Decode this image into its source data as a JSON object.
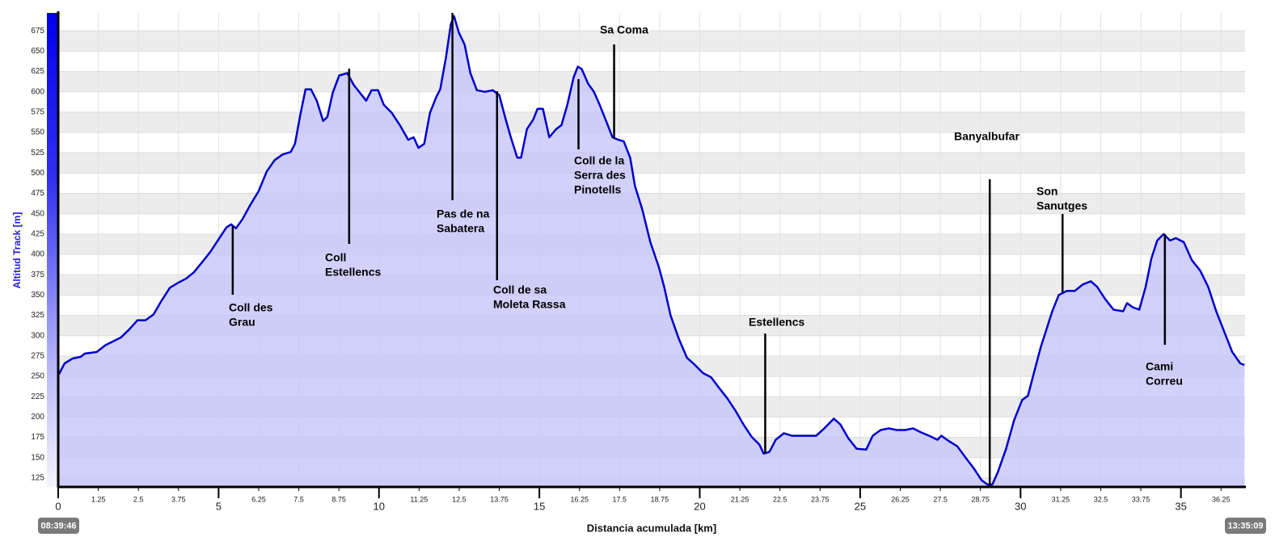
{
  "chart_data": {
    "type": "area",
    "xlabel": "Distancia acumulada [km]",
    "ylabel": "Altitud Track [m]",
    "start_time": "08:39:46",
    "end_time": "13:35:09",
    "color": "#0000cc",
    "fill": "#c4c4fa",
    "grid": true,
    "xlim": [
      0,
      37
    ],
    "ylim": [
      114,
      697
    ],
    "xticks": [
      0,
      1.25,
      2.5,
      3.75,
      5,
      6.25,
      7.5,
      8.75,
      10,
      11.25,
      12.5,
      13.75,
      15,
      16.25,
      17.5,
      18.75,
      20,
      21.25,
      22.5,
      23.75,
      25,
      26.25,
      27.5,
      28.75,
      30,
      31.25,
      32.5,
      33.75,
      35,
      36.25
    ],
    "yticks": [
      125,
      150,
      175,
      200,
      225,
      250,
      275,
      300,
      325,
      350,
      375,
      400,
      425,
      450,
      475,
      500,
      525,
      550,
      575,
      600,
      625,
      650,
      675
    ],
    "x": [
      0,
      0.2,
      0.45,
      0.7,
      0.83,
      1.2,
      1.46,
      1.71,
      1.96,
      2.22,
      2.47,
      2.72,
      2.97,
      3.22,
      3.48,
      3.73,
      3.98,
      4.23,
      4.48,
      4.74,
      4.99,
      5.24,
      5.39,
      5.54,
      5.74,
      5.99,
      6.25,
      6.5,
      6.75,
      7.0,
      7.25,
      7.38,
      7.56,
      7.71,
      7.88,
      8.06,
      8.26,
      8.39,
      8.56,
      8.76,
      9.01,
      9.22,
      9.4,
      9.6,
      9.77,
      9.97,
      10.15,
      10.4,
      10.65,
      10.91,
      11.08,
      11.23,
      11.41,
      11.59,
      11.79,
      11.91,
      12.09,
      12.24,
      12.34,
      12.49,
      12.67,
      12.85,
      13.05,
      13.3,
      13.55,
      13.75,
      13.93,
      14.11,
      14.31,
      14.43,
      14.61,
      14.81,
      14.94,
      15.11,
      15.31,
      15.52,
      15.69,
      15.87,
      16.07,
      16.2,
      16.32,
      16.52,
      16.7,
      16.88,
      17.08,
      17.28,
      17.46,
      17.63,
      17.83,
      17.98,
      18.21,
      18.46,
      18.72,
      18.89,
      19.09,
      19.35,
      19.6,
      19.85,
      20.1,
      20.35,
      20.6,
      20.86,
      21.11,
      21.36,
      21.61,
      21.86,
      21.99,
      22.17,
      22.37,
      22.62,
      22.87,
      23.38,
      23.63,
      23.88,
      24.18,
      24.38,
      24.63,
      24.89,
      25.19,
      25.39,
      25.64,
      25.89,
      26.14,
      26.4,
      26.65,
      26.9,
      27.15,
      27.41,
      27.53,
      27.78,
      28.03,
      28.29,
      28.54,
      28.79,
      28.97,
      29.12,
      29.29,
      29.55,
      29.8,
      30.05,
      30.23,
      30.43,
      30.63,
      30.81,
      30.99,
      31.19,
      31.44,
      31.69,
      31.94,
      32.19,
      32.39,
      32.64,
      32.9,
      33.2,
      33.32,
      33.5,
      33.7,
      33.9,
      34.08,
      34.26,
      34.46,
      34.66,
      34.84,
      35.09,
      35.34,
      35.6,
      35.85,
      36.1,
      36.35,
      36.6,
      36.85,
      36.98
    ],
    "values": [
      251,
      266,
      272,
      274,
      278,
      280,
      288,
      293,
      298,
      308,
      319,
      319,
      326,
      343,
      359,
      365,
      370,
      378,
      390,
      403,
      418,
      433,
      437,
      432,
      443,
      461,
      478,
      502,
      516,
      523,
      526,
      536,
      574,
      603,
      603,
      589,
      564,
      569,
      599,
      620,
      623,
      608,
      599,
      589,
      602,
      602,
      584,
      574,
      559,
      541,
      544,
      531,
      536,
      574,
      594,
      603,
      643,
      683,
      693,
      673,
      658,
      623,
      602,
      600,
      602,
      596,
      569,
      544,
      519,
      519,
      554,
      566,
      579,
      579,
      544,
      554,
      559,
      584,
      618,
      631,
      628,
      610,
      600,
      584,
      564,
      544,
      541,
      539,
      519,
      484,
      455,
      415,
      385,
      360,
      325,
      296,
      273,
      264,
      254,
      249,
      236,
      223,
      208,
      191,
      176,
      166,
      155,
      157,
      172,
      180,
      177,
      177,
      177,
      186,
      198,
      191,
      174,
      161,
      160,
      177,
      184,
      186,
      184,
      184,
      186,
      181,
      177,
      172,
      177,
      170,
      164,
      150,
      137,
      122,
      117,
      117,
      132,
      161,
      196,
      221,
      226,
      256,
      286,
      308,
      330,
      350,
      355,
      355,
      363,
      367,
      360,
      345,
      332,
      330,
      340,
      335,
      332,
      360,
      395,
      417,
      425,
      417,
      420,
      415,
      393,
      380,
      360,
      330,
      305,
      280,
      266,
      264
    ],
    "annotations": [
      {
        "label": [
          "Coll des",
          "Grau"
        ],
        "x": 5.44
      },
      {
        "label": [
          "Coll",
          "Estellencs"
        ],
        "x": 9.07
      },
      {
        "label": [
          "Pas de na",
          "Sabatera"
        ],
        "x": 12.29
      },
      {
        "label": [
          "Coll de sa",
          "Moleta Rassa"
        ],
        "x": 13.68
      },
      {
        "label": [
          "Coll de la",
          "Serra des",
          "Pinotells"
        ],
        "x": 16.22
      },
      {
        "label": [
          "Sa Coma"
        ],
        "x": 17.33
      },
      {
        "label": [
          "Estellencs"
        ],
        "x": 22.04
      },
      {
        "label": [
          "Banyalbufar"
        ],
        "x": 29.04
      },
      {
        "label": [
          "Son",
          "Sanutges"
        ],
        "x": 31.31
      },
      {
        "label": [
          "Cami",
          "Correu"
        ],
        "x": 34.5
      }
    ]
  }
}
